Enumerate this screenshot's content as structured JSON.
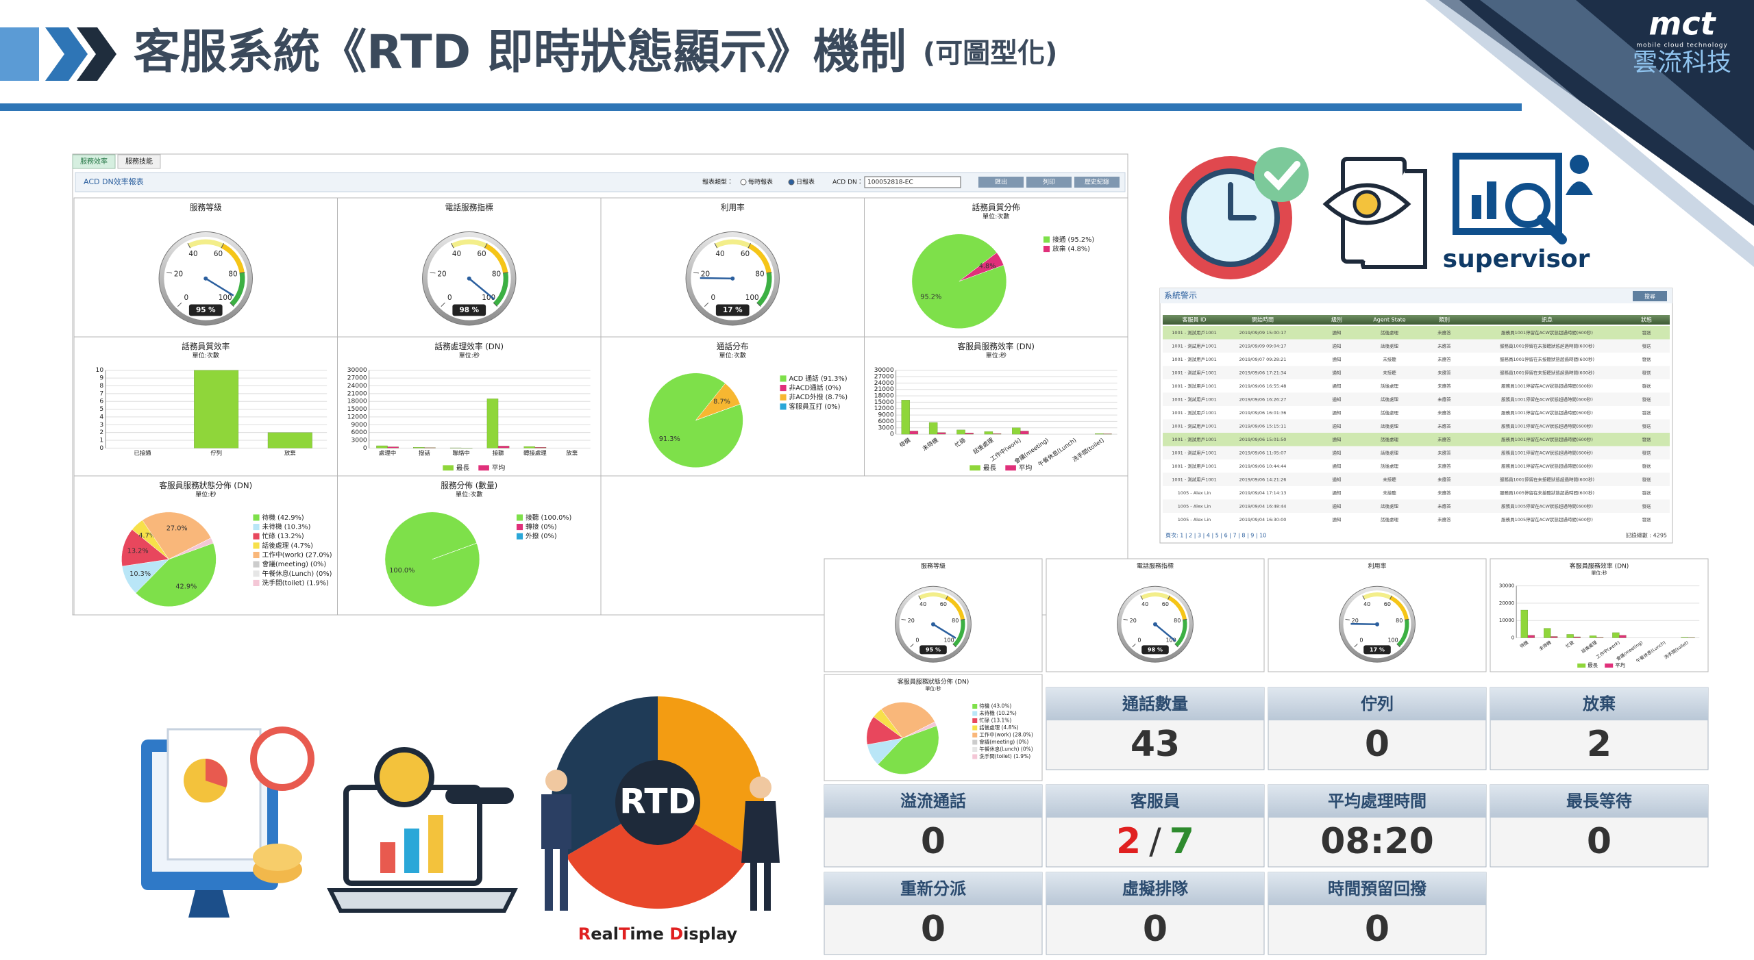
{
  "header": {
    "title": "客服系統《RTD 即時狀態顯示》機制",
    "subtitle": "(可圖型化)",
    "logo": "mct",
    "logo_tagline": "mobile cloud technology",
    "company": "雲流科技"
  },
  "report": {
    "tabs": [
      "服務效率",
      "服務技能"
    ],
    "title": "ACD DN效率報表",
    "controls": [
      "報表類型：",
      "每時報表",
      "日報表",
      "ACD DN：",
      "100052818-EC",
      "匯出",
      "列印",
      "歷史紀錄"
    ],
    "panels": [
      {
        "type": "gauge",
        "title": "服務等級",
        "value": 95,
        "value_label": "95 %",
        "ticks": [
          0,
          20,
          40,
          60,
          80,
          100
        ]
      },
      {
        "type": "gauge",
        "title": "電話服務指標",
        "value": 98,
        "value_label": "98 %",
        "ticks": [
          0,
          20,
          40,
          60,
          80,
          100
        ]
      },
      {
        "type": "gauge",
        "title": "利用率",
        "value": 17,
        "value_label": "17 %",
        "ticks": [
          0,
          20,
          40,
          60,
          80,
          100
        ]
      },
      {
        "type": "pie",
        "title": "話務員質分佈",
        "unit": "單位:次數",
        "slices": [
          {
            "label": "接通 (95.2%)",
            "value": 95.2,
            "data_label": "95.2%",
            "color": "#7ee04a"
          },
          {
            "label": "放棄 (4.8%)",
            "value": 4.8,
            "data_label": "4.8%",
            "color": "#e0307a"
          }
        ]
      },
      {
        "type": "bar",
        "title": "話務員質效率",
        "unit": "單位:次數",
        "ylim": [
          0,
          10
        ],
        "yticks": [
          0,
          1,
          2,
          3,
          4,
          5,
          6,
          7,
          8,
          9,
          10
        ],
        "categories": [
          "已接通",
          "佇列",
          "放棄"
        ],
        "series": [
          {
            "name": "次數",
            "color": "#8fd63a",
            "values": [
              0,
              10,
              2
            ]
          }
        ]
      },
      {
        "type": "bar",
        "title": "話務處理效率 (DN)",
        "unit": "單位:秒",
        "ylim": [
          0,
          30000
        ],
        "yticks": [
          0,
          3000,
          6000,
          9000,
          12000,
          15000,
          18000,
          21000,
          24000,
          27000,
          30000
        ],
        "categories": [
          "處理中",
          "撥話",
          "聯絡中",
          "接聽",
          "轉接處理",
          "放棄"
        ],
        "series": [
          {
            "name": "最長",
            "color": "#8fd63a",
            "values": [
              900,
              300,
              100,
              19000,
              600,
              0
            ]
          },
          {
            "name": "平均",
            "color": "#e0307a",
            "values": [
              500,
              200,
              50,
              800,
              300,
              0
            ]
          }
        ]
      },
      {
        "type": "pie",
        "title": "通話分布",
        "unit": "單位:次數",
        "slices": [
          {
            "label": "ACD 通話 (91.3%)",
            "value": 91.3,
            "data_label": "91.3%",
            "color": "#7ee04a"
          },
          {
            "label": "非ACD通話 (0%)",
            "value": 0,
            "color": "#e0307a"
          },
          {
            "label": "非ACD外撥 (8.7%)",
            "value": 8.7,
            "data_label": "8.7%",
            "color": "#f7b731"
          },
          {
            "label": "客服員互打 (0%)",
            "value": 0,
            "color": "#2aa7d8"
          }
        ]
      },
      {
        "type": "bar",
        "title": "客服員服務效率 (DN)",
        "unit": "單位:秒",
        "ylim": [
          0,
          30000
        ],
        "yticks": [
          0,
          3000,
          6000,
          9000,
          12000,
          15000,
          18000,
          21000,
          24000,
          27000,
          30000
        ],
        "categories": [
          "待機",
          "未待機",
          "忙碌",
          "話後處理",
          "工作中(work)",
          "會議(meeting)",
          "午餐休息(Lunch)",
          "洗手間(toilet)"
        ],
        "series": [
          {
            "name": "最長",
            "color": "#8fd63a",
            "values": [
              16000,
              5500,
              2000,
              1200,
              3000,
              0,
              0,
              300
            ]
          },
          {
            "name": "平均",
            "color": "#e0307a",
            "values": [
              1500,
              800,
              600,
              300,
              1500,
              0,
              0,
              200
            ]
          }
        ]
      },
      {
        "type": "pie",
        "title": "客服員服務狀態分佈 (DN)",
        "unit": "單位:秒",
        "slices": [
          {
            "label": "待機 (42.9%)",
            "value": 42.9,
            "data_label": "42.9%",
            "color": "#7ee04a"
          },
          {
            "label": "未待機 (10.3%)",
            "value": 10.3,
            "data_label": "10.3%",
            "color": "#b9e6f7"
          },
          {
            "label": "忙碌 (13.2%)",
            "value": 13.2,
            "data_label": "13.2%",
            "color": "#e8475d"
          },
          {
            "label": "話後處理 (4.7%)",
            "value": 4.7,
            "data_label": "4.7%",
            "color": "#f7e04a"
          },
          {
            "label": "工作中(work) (27.0%)",
            "value": 27.0,
            "data_label": "27.0%",
            "color": "#f9b77a"
          },
          {
            "label": "會議(meeting) (0%)",
            "value": 0,
            "color": "#cccccc"
          },
          {
            "label": "午餐休息(Lunch) (0%)",
            "value": 0,
            "color": "#e6e6e6"
          },
          {
            "label": "洗手間(toilet) (1.9%)",
            "value": 1.9,
            "color": "#f4c7d6"
          }
        ]
      },
      {
        "type": "pie",
        "title": "服務分佈 (數量)",
        "unit": "單位:次數",
        "slices": [
          {
            "label": "接聽 (100.0%)",
            "value": 100.0,
            "data_label": "100.0%",
            "color": "#7ee04a"
          },
          {
            "label": "轉接 (0%)",
            "value": 0,
            "color": "#e0307a"
          },
          {
            "label": "外撥 (0%)",
            "value": 0,
            "color": "#2aa7d8"
          }
        ]
      }
    ]
  },
  "alarms": {
    "title": "系統警示",
    "search": "搜尋",
    "columns": [
      "客服員 ID",
      "開始時間",
      "級別",
      "Agent State",
      "類別",
      "訊息",
      "狀態"
    ],
    "rows": [
      [
        "1001 - 測試用戶1001",
        "2019/09/09 15:00:17",
        "通知",
        "話後處理",
        "未應答",
        "服務員1001停留在ACW狀態超過時間(600秒)",
        "發送"
      ],
      [
        "1001 - 測試用戶1001",
        "2019/09/09 09:04:17",
        "通知",
        "話後處理",
        "未應答",
        "服務員1001停留在未接聽狀態超過時間(600秒)",
        "發送"
      ],
      [
        "1001 - 測試用戶1001",
        "2019/09/07 09:28:21",
        "通知",
        "未接聽",
        "未應答",
        "服務員1001停留在未接聽狀態超過時間(600秒)",
        "發送"
      ],
      [
        "1001 - 測試用戶1001",
        "2019/09/06 17:21:34",
        "通知",
        "未接聽",
        "未應答",
        "服務員1001停留在未接聽狀態超過時間(600秒)",
        "發送"
      ],
      [
        "1001 - 測試用戶1001",
        "2019/09/06 16:55:48",
        "通知",
        "話後處理",
        "未應答",
        "服務員1001停留在ACW狀態超過時間(600秒)",
        "發送"
      ],
      [
        "1001 - 測試用戶1001",
        "2019/09/06 16:26:27",
        "通知",
        "話後處理",
        "未應答",
        "服務員1001停留在ACW狀態超過時間(600秒)",
        "發送"
      ],
      [
        "1001 - 測試用戶1001",
        "2019/09/06 16:01:36",
        "通知",
        "話後處理",
        "未應答",
        "服務員1001停留在ACW狀態超過時間(600秒)",
        "發送"
      ],
      [
        "1001 - 測試用戶1001",
        "2019/09/06 15:15:11",
        "通知",
        "話後處理",
        "未應答",
        "服務員1001停留在ACW狀態超過時間(600秒)",
        "發送"
      ],
      [
        "1001 - 測試用戶1001",
        "2019/09/06 15:01:50",
        "通知",
        "話後處理",
        "未應答",
        "服務員1001停留在ACW狀態超過時間(600秒)",
        "發送"
      ],
      [
        "1001 - 測試用戶1001",
        "2019/09/06 11:05:07",
        "通知",
        "話後處理",
        "未應答",
        "服務員1001停留在ACW狀態超過時間(600秒)",
        "發送"
      ],
      [
        "1001 - 測試用戶1001",
        "2019/09/06 10:44:44",
        "通知",
        "話後處理",
        "未應答",
        "服務員1001停留在ACW狀態超過時間(600秒)",
        "發送"
      ],
      [
        "1001 - 測試用戶1001",
        "2019/09/06 14:21:26",
        "通知",
        "未接聽",
        "未應答",
        "服務員1001停留在未接聽狀態超過時間(600秒)",
        "發送"
      ],
      [
        "1005 - Alex Lin",
        "2019/09/04 17:14:13",
        "通知",
        "未接聽",
        "未應答",
        "服務員1005停留在未接聽狀態超過時間(600秒)",
        "發送"
      ],
      [
        "1005 - Alex Lin",
        "2019/09/04 16:48:44",
        "通知",
        "話後處理",
        "未應答",
        "服務員1005停留在ACW狀態超過時間(600秒)",
        "發送"
      ],
      [
        "1005 - Alex Lin",
        "2019/09/04 16:30:00",
        "通知",
        "話後處理",
        "未應答",
        "服務員1005停留在ACW狀態超過時間(600秒)",
        "發送"
      ]
    ],
    "pager": "頁次: 1 | 2 | 3 | 4 | 5 | 6 | 7 | 8 | 9 | 10",
    "total": "記錄總數 : 4295"
  },
  "icons": {
    "supervisor": "supervisor"
  },
  "dashboard": {
    "panels": [
      {
        "type": "gauge",
        "title": "服務等級",
        "value": 95,
        "value_label": "95 %",
        "ticks": [
          0,
          20,
          40,
          60,
          80,
          100
        ]
      },
      {
        "type": "gauge",
        "title": "電話服務指標",
        "value": 98,
        "value_label": "98 %",
        "ticks": [
          0,
          20,
          40,
          60,
          80,
          100
        ]
      },
      {
        "type": "gauge",
        "title": "利用率",
        "value": 17,
        "value_label": "17 %",
        "ticks": [
          0,
          20,
          40,
          60,
          80,
          100
        ]
      },
      {
        "type": "bar",
        "title": "客服員服務效率 (DN)",
        "unit": "單位:秒",
        "ylim": [
          0,
          30000
        ],
        "yticks": [
          0,
          10000,
          20000,
          30000
        ],
        "categories": [
          "待機",
          "未待機",
          "忙碌",
          "話後處理",
          "工作中(work)",
          "會議(meeting)",
          "午餐休息(Lunch)",
          "洗手間(toilet)"
        ],
        "series": [
          {
            "name": "最長",
            "color": "#8fd63a",
            "values": [
              16000,
              5500,
              2000,
              1200,
              3000,
              0,
              0,
              300
            ]
          },
          {
            "name": "平均",
            "color": "#e0307a",
            "values": [
              1500,
              800,
              600,
              300,
              1500,
              0,
              0,
              200
            ]
          }
        ]
      },
      {
        "type": "pie",
        "title": "客服員服務狀態分佈 (DN)",
        "unit": "單位:秒",
        "slices": [
          {
            "label": "待機 (43.0%)",
            "value": 43.0,
            "color": "#7ee04a"
          },
          {
            "label": "未待機 (10.2%)",
            "value": 10.2,
            "color": "#b9e6f7"
          },
          {
            "label": "忙碌 (13.1%)",
            "value": 13.1,
            "color": "#e8475d"
          },
          {
            "label": "話後處理 (4.8%)",
            "value": 4.8,
            "color": "#f7e04a"
          },
          {
            "label": "工作中(work) (28.0%)",
            "value": 28.0,
            "color": "#f9b77a"
          },
          {
            "label": "會議(meeting) (0%)",
            "value": 0,
            "color": "#cccccc"
          },
          {
            "label": "午餐休息(Lunch) (0%)",
            "value": 0,
            "color": "#e6e6e6"
          },
          {
            "label": "洗手間(toilet) (1.9%)",
            "value": 1.9,
            "color": "#f4c7d6"
          }
        ]
      }
    ],
    "kpis": [
      {
        "label": "通話數量",
        "value": 43
      },
      {
        "label": "佇列",
        "value": 0
      },
      {
        "label": "放棄",
        "value": 2
      },
      {
        "label": "溢流通話",
        "value": 0
      },
      {
        "label": "客服員",
        "value": {
          "active": 2,
          "separator": "/",
          "total": 7
        }
      },
      {
        "label": "平均處理時間",
        "value": "08:20"
      },
      {
        "label": "最長等待",
        "value": 0
      },
      {
        "label": "重新分派",
        "value": 0
      },
      {
        "label": "虛擬排隊",
        "value": 0
      },
      {
        "label": "時間預留回撥",
        "value": 0
      }
    ]
  },
  "illustration": {
    "rtd": "RTD",
    "caption": [
      "R",
      "eal",
      "T",
      "ime ",
      "D",
      "isplay"
    ]
  }
}
